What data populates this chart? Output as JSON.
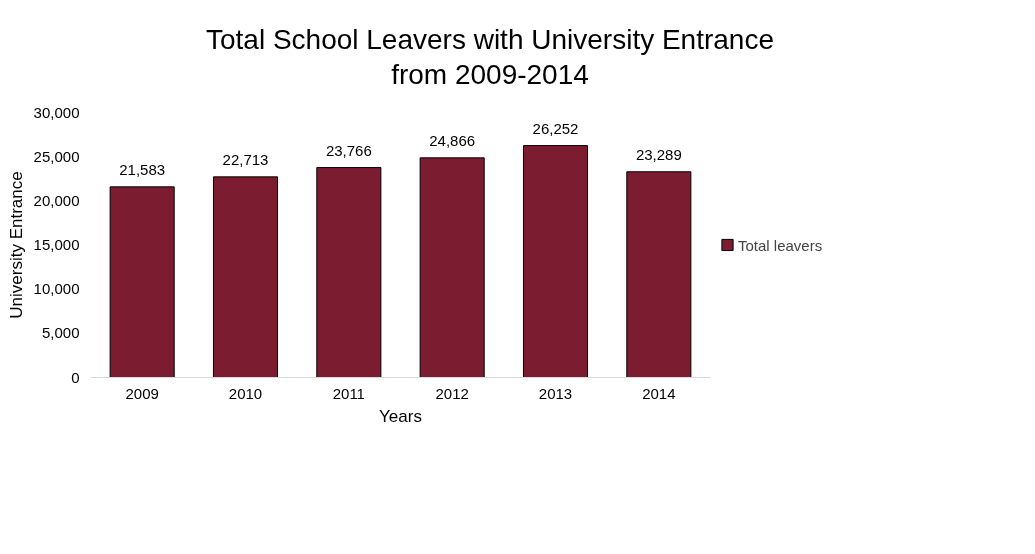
{
  "chart_data": {
    "type": "bar",
    "title": "Total School Leavers with University Entrance from 2009-2014",
    "xlabel": "Years",
    "ylabel": "University Entrance",
    "categories": [
      "2009",
      "2010",
      "2011",
      "2012",
      "2013",
      "2014"
    ],
    "series": [
      {
        "name": "Total leavers",
        "color": "#7b1c30",
        "values": [
          21583,
          22713,
          23766,
          24866,
          26252,
          23289
        ],
        "value_labels": [
          "21,583",
          "22,713",
          "23,766",
          "24,866",
          "26,252",
          "23,289"
        ]
      }
    ],
    "ylim": [
      0,
      30000
    ],
    "yticks": [
      0,
      {
        "value": 5000,
        "label": "5,000"
      },
      {
        "value": 10000,
        "label": "10,000"
      },
      {
        "value": 15000,
        "label": "15,000"
      },
      {
        "value": 20000,
        "label": "20,000"
      },
      {
        "value": 25000,
        "label": "25,000"
      },
      {
        "value": 30000,
        "label": "30,000"
      }
    ],
    "grid": false,
    "legend": "right"
  }
}
